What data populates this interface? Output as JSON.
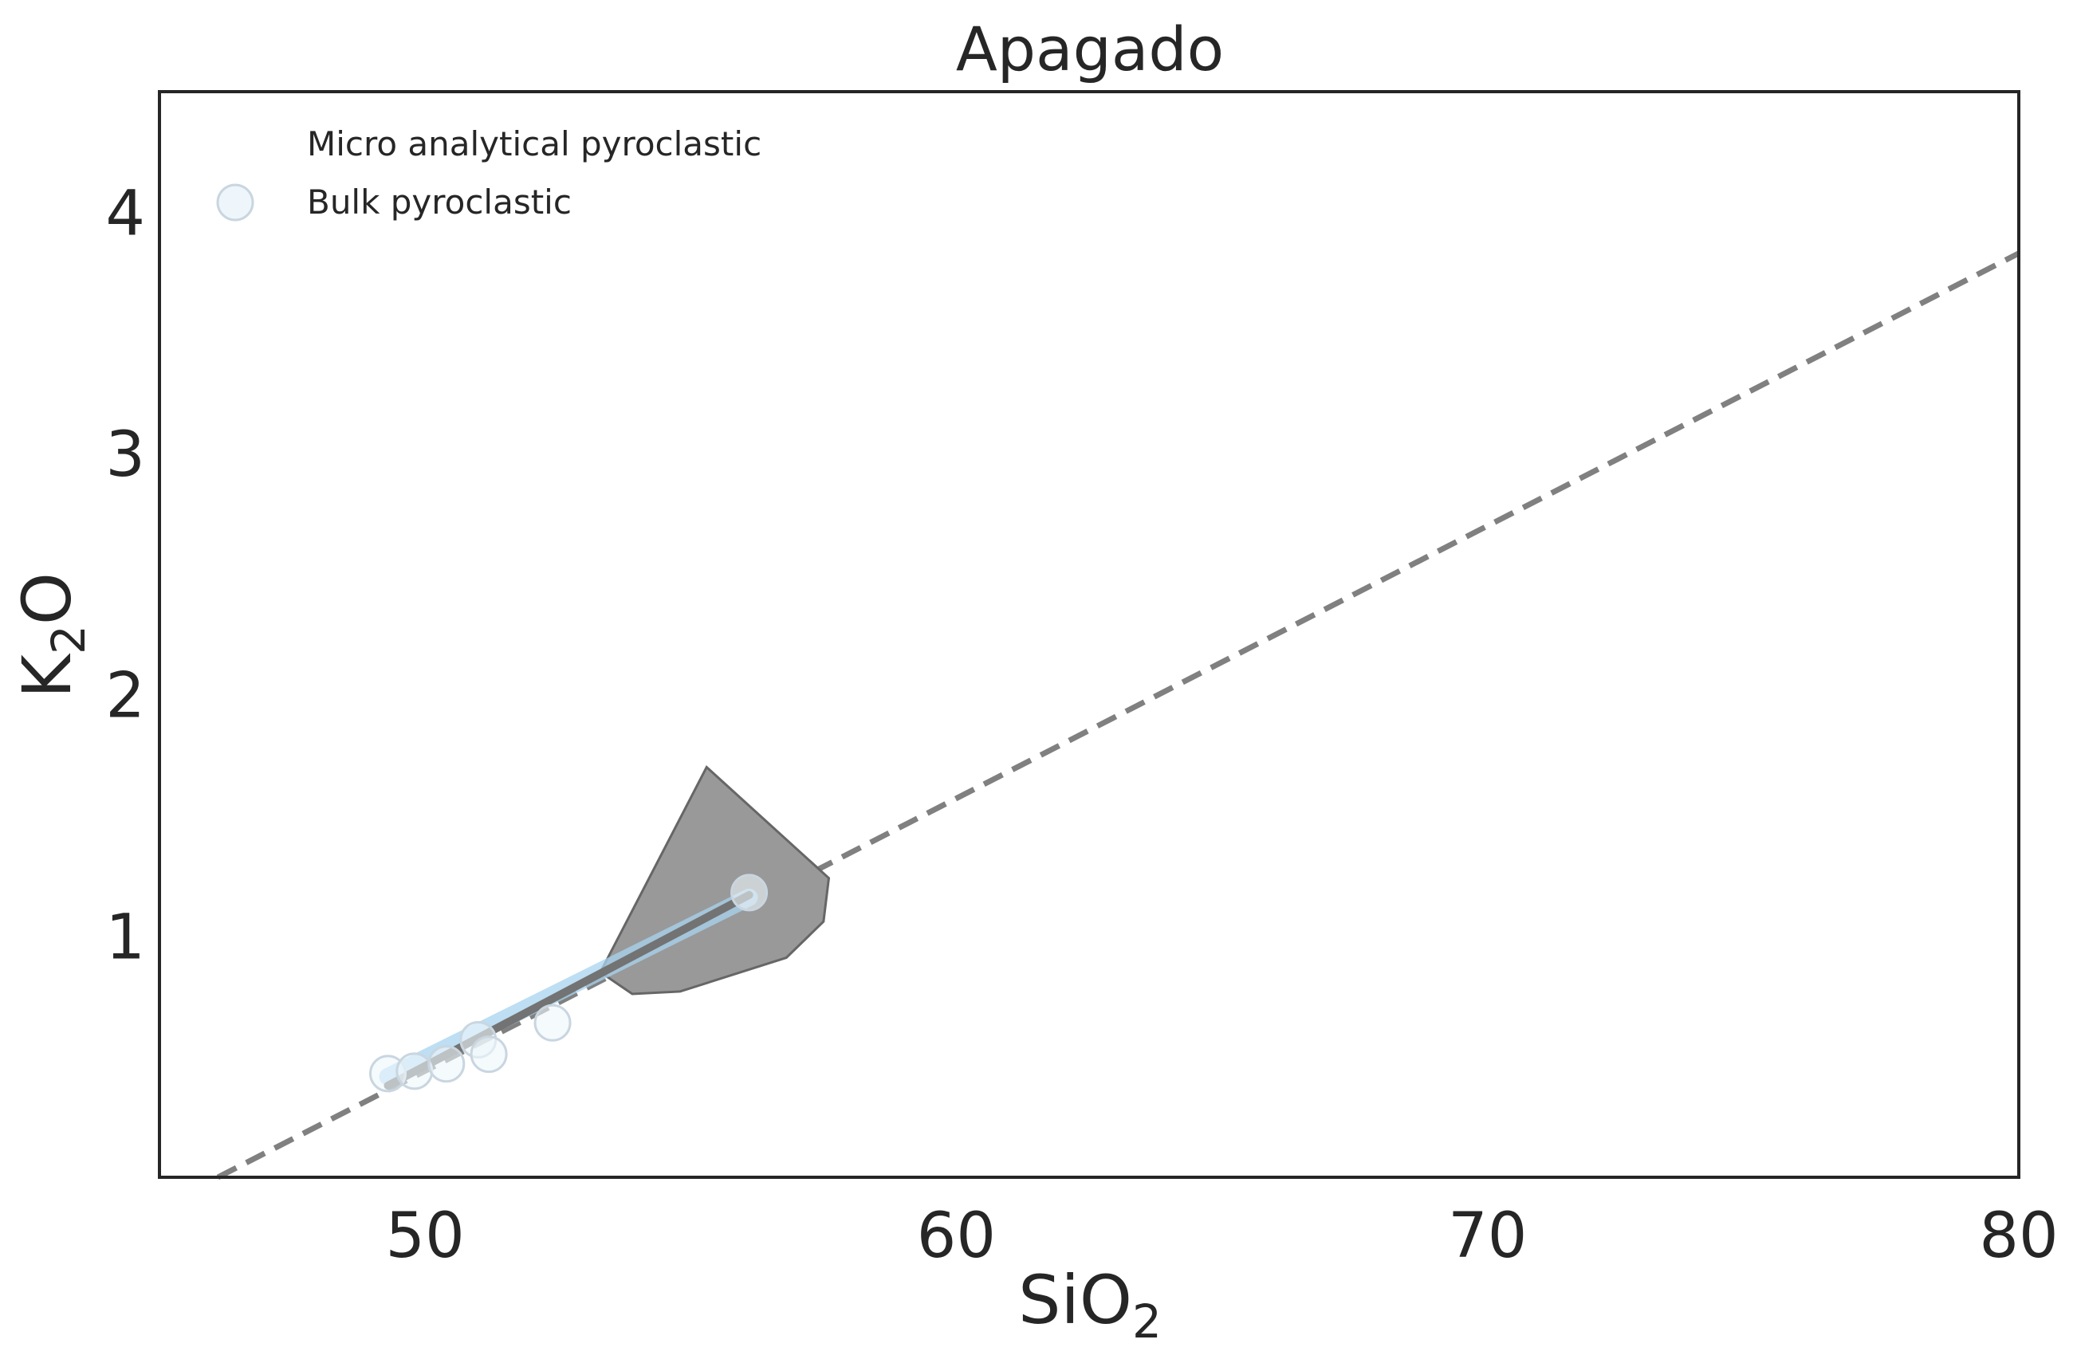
{
  "chart_data": {
    "type": "scatter",
    "title": "Apagado",
    "xlabel": {
      "base": "SiO",
      "subscript": "2"
    },
    "ylabel": {
      "base": "K",
      "subscript": "2",
      "suffix": "O"
    },
    "xlim": [
      45,
      80
    ],
    "ylim": [
      0,
      4.5
    ],
    "xticks": [
      50,
      60,
      70,
      80
    ],
    "yticks": [
      1,
      2,
      3,
      4
    ],
    "grid": false,
    "legend_position": "top-left",
    "legend": [
      {
        "label": "Micro analytical pyroclastic",
        "marker": "none"
      },
      {
        "label": "Bulk pyroclastic",
        "marker": "circle"
      }
    ],
    "series": [
      {
        "name": "Bulk pyroclastic",
        "kind": "points",
        "x": [
          49.3,
          49.8,
          50.4,
          51.0,
          51.2,
          52.4,
          56.1
        ],
        "y": [
          0.43,
          0.44,
          0.47,
          0.57,
          0.51,
          0.64,
          1.18
        ]
      },
      {
        "name": "Micro analytical pyroclastic",
        "kind": "polygon",
        "x": [
          53.3,
          55.3,
          57.1,
          57.6,
          57.5,
          56.8,
          54.8,
          53.9,
          53.3
        ],
        "y": [
          0.85,
          1.7,
          1.34,
          1.24,
          1.06,
          0.91,
          0.77,
          0.76,
          0.85
        ]
      },
      {
        "kind": "line-band",
        "x": [
          49.3,
          56.1
        ],
        "y": [
          0.43,
          1.18
        ]
      },
      {
        "kind": "fit-line",
        "x": [
          49.3,
          56.1
        ],
        "y": [
          0.38,
          1.17
        ]
      },
      {
        "kind": "dashed-line",
        "x": [
          46.1,
          80
        ],
        "y": [
          0.0,
          3.83
        ]
      }
    ],
    "colors": {
      "polygon_fill": "#999999",
      "polygon_edge": "#666666",
      "point_fill": "#eef6fb",
      "point_edge": "#c9d6e0",
      "band": "#a8d4f0",
      "fit_line": "#737373",
      "dashed_line": "#808080",
      "axes": "#262626"
    }
  }
}
